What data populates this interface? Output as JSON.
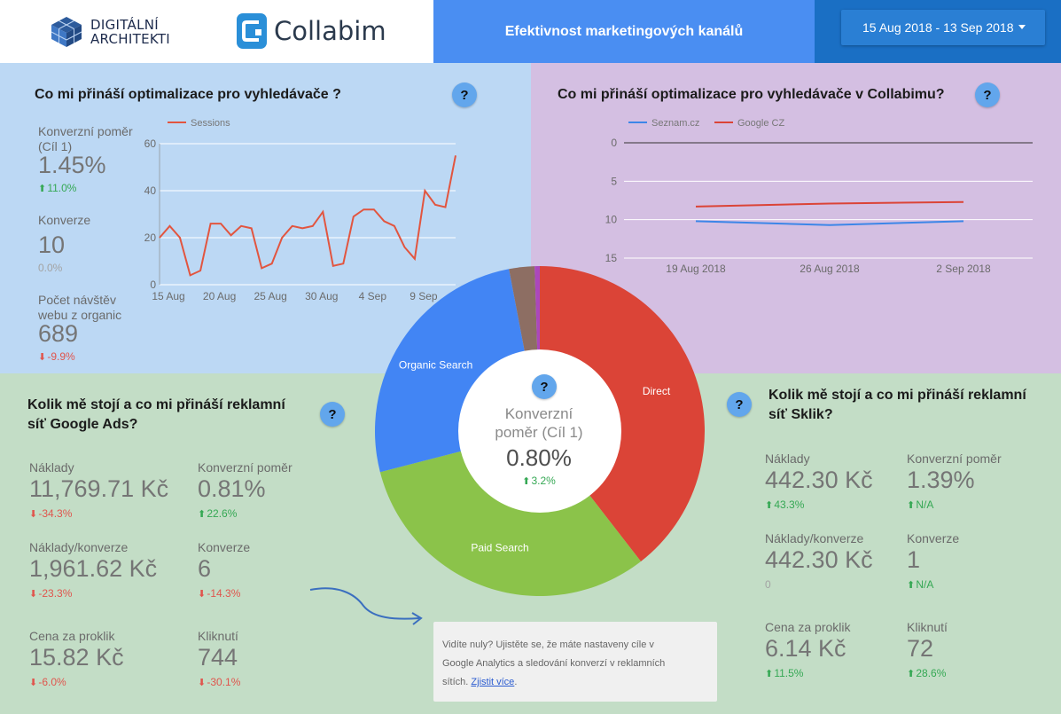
{
  "header": {
    "logo_da_line1": "DIGITÁLNÍ",
    "logo_da_line2": "ARCHITEKTI",
    "logo_collabim": "Collabim",
    "title": "Efektivnost marketingových kanálů",
    "date_range": "15 Aug 2018 - 13 Sep 2018"
  },
  "help_label": "?",
  "seo": {
    "title": "Co mi přináší optimalizace pro vyhledávače ?",
    "kpis": [
      {
        "label_line1": "Konverzní poměr",
        "label_line2": "(Cíl 1)",
        "value": "1.45%",
        "change": "11.0%",
        "direction": "up"
      },
      {
        "label_line1": "Konverze",
        "label_line2": "",
        "value": "10",
        "change": "0.0%",
        "direction": "neutral"
      },
      {
        "label_line1": "Počet návštěv",
        "label_line2": "webu z organic",
        "value": "689",
        "change": "-9.9%",
        "direction": "down"
      }
    ],
    "chart_data": {
      "type": "line",
      "series": [
        {
          "name": "Sessions",
          "color": "#e2553f",
          "values": [
            20,
            25,
            20,
            4,
            6,
            26,
            26,
            21,
            25,
            24,
            7,
            9,
            20,
            25,
            24,
            25,
            31,
            8,
            9,
            29,
            32,
            32,
            27,
            25,
            16,
            11,
            40,
            34,
            33,
            55
          ]
        }
      ],
      "x_tick_labels": [
        "15 Aug",
        "20 Aug",
        "25 Aug",
        "30 Aug",
        "4 Sep",
        "9 Sep"
      ],
      "ylim": [
        0,
        60
      ],
      "y_ticks": [
        0,
        20,
        40,
        60
      ],
      "grid": true,
      "legend_position": "top"
    }
  },
  "collabim": {
    "title": "Co mi přináší optimalizace pro vyhledávače v Collabimu?",
    "chart_data": {
      "type": "line",
      "y_reversed": true,
      "ylim": [
        0,
        15
      ],
      "y_ticks": [
        0,
        5,
        10,
        15
      ],
      "x_tick_labels": [
        "19 Aug 2018",
        "26 Aug 2018",
        "2 Sep 2018"
      ],
      "series": [
        {
          "name": "Seznam.cz",
          "color": "#3d86e8",
          "values": [
            10.2,
            10.7,
            10.2
          ]
        },
        {
          "name": "Google CZ",
          "color": "#db4437",
          "values": [
            8.3,
            7.9,
            7.7
          ]
        }
      ],
      "grid": true,
      "legend_position": "top"
    }
  },
  "donut": {
    "center_label_line1": "Konverzní",
    "center_label_line2": "poměr (Cíl 1)",
    "center_value": "0.80%",
    "center_change": "3.2%",
    "center_direction": "up",
    "chart_data": {
      "type": "pie",
      "slices": [
        {
          "name": "Direct",
          "value": 39.5,
          "color": "#db4437"
        },
        {
          "name": "Paid Search",
          "value": 31.5,
          "color": "#8bc34a"
        },
        {
          "name": "Organic Search",
          "value": 26.0,
          "color": "#4285f4"
        },
        {
          "name": "",
          "value": 2.5,
          "color": "#8d6e63"
        },
        {
          "name": "",
          "value": 0.5,
          "color": "#ab47bc"
        }
      ]
    }
  },
  "google_ads": {
    "title_line1": "Kolik mě stojí a co mi přináší reklamní",
    "title_line2": "síť Google Ads?",
    "kpis": [
      {
        "label": "Náklady",
        "value": "11,769.71 Kč",
        "change": "-34.3%",
        "direction": "down"
      },
      {
        "label": "Konverzní poměr",
        "value": "0.81%",
        "change": "22.6%",
        "direction": "up"
      },
      {
        "label": "Náklady/konverze",
        "value": "1,961.62 Kč",
        "change": "-23.3%",
        "direction": "down"
      },
      {
        "label": "Konverze",
        "value": "6",
        "change": "-14.3%",
        "direction": "down"
      },
      {
        "label": "Cena za proklik",
        "value": "15.82 Kč",
        "change": "-6.0%",
        "direction": "down"
      },
      {
        "label": "Kliknutí",
        "value": "744",
        "change": "-30.1%",
        "direction": "down"
      }
    ]
  },
  "sklik": {
    "title_line1": "Kolik mě stojí a co mi přináší reklamní",
    "title_line2": "síť Sklik?",
    "kpis": [
      {
        "label": "Náklady",
        "value": "442.30 Kč",
        "change": "43.3%",
        "direction": "up"
      },
      {
        "label": "Konverzní poměr",
        "value": "1.39%",
        "change": "N/A",
        "direction": "up"
      },
      {
        "label": "Náklady/konverze",
        "value": "442.30 Kč",
        "change": "0",
        "direction": "neutral"
      },
      {
        "label": "Konverze",
        "value": "1",
        "change": "N/A",
        "direction": "up"
      },
      {
        "label": "Cena za proklik",
        "value": "6.14 Kč",
        "change": "11.5%",
        "direction": "up"
      },
      {
        "label": "Kliknutí",
        "value": "72",
        "change": "28.6%",
        "direction": "up"
      }
    ]
  },
  "note": {
    "line1": "Vidíte nuly? Ujistěte se, že máte nastaveny cíle v",
    "line2": "Google Analytics a sledování konverzí v reklamních",
    "line3_prefix": "sítích.",
    "link_text": "Zjistit více",
    "line3_suffix": "."
  }
}
